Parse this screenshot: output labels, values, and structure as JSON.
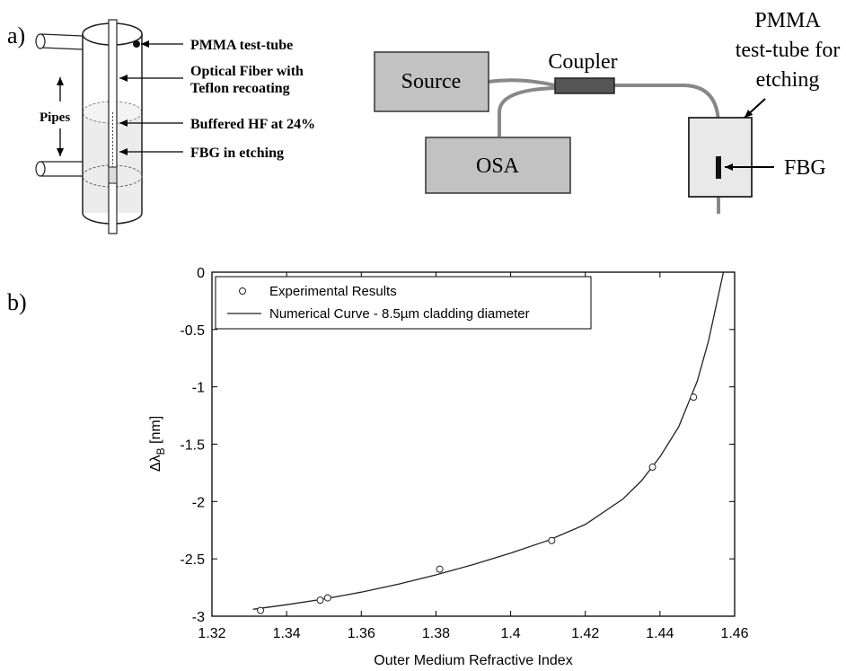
{
  "panel_a": {
    "label": "a)",
    "tube_labels": {
      "pmma": "PMMA test-tube",
      "fiber_line1": "Optical Fiber with",
      "fiber_line2": "Teflon recoating",
      "hf": "Buffered HF at 24%",
      "fbg": "FBG in etching",
      "pipes": "Pipes"
    },
    "setup": {
      "source": "Source",
      "coupler": "Coupler",
      "osa": "OSA",
      "pmma_line1": "PMMA",
      "pmma_line2": "test-tube for",
      "pmma_line3": "etching",
      "fbg": "FBG"
    }
  },
  "panel_b": {
    "label": "b)"
  },
  "chart_data": {
    "type": "scatter",
    "xlabel": "Outer Medium Refractive Index",
    "ylabel_main": "Δλ",
    "ylabel_sub": "B",
    "ylabel_unit": " [nm]",
    "xlim": [
      1.32,
      1.46
    ],
    "ylim": [
      -3,
      0
    ],
    "xticks": [
      1.32,
      1.34,
      1.36,
      1.38,
      1.4,
      1.42,
      1.44,
      1.46
    ],
    "xtick_labels": [
      "1.32",
      "1.34",
      "1.36",
      "1.38",
      "1.4",
      "1.42",
      "1.44",
      "1.46"
    ],
    "yticks": [
      0,
      -0.5,
      -1,
      -1.5,
      -2,
      -2.5,
      -3
    ],
    "ytick_labels": [
      "0",
      "-0.5",
      "-1",
      "-1.5",
      "-2",
      "-2.5",
      "-3"
    ],
    "grid": false,
    "legend_position": "top-left",
    "series": [
      {
        "name": "Experimental Results",
        "kind": "markers",
        "x": [
          1.333,
          1.349,
          1.351,
          1.381,
          1.411,
          1.438,
          1.449
        ],
        "y": [
          -2.95,
          -2.86,
          -2.84,
          -2.59,
          -2.34,
          -1.7,
          -1.09
        ]
      },
      {
        "name": "Numerical Curve - 8.5µm cladding diameter",
        "kind": "line",
        "x": [
          1.331,
          1.34,
          1.35,
          1.36,
          1.37,
          1.38,
          1.39,
          1.4,
          1.41,
          1.42,
          1.43,
          1.435,
          1.44,
          1.445,
          1.45,
          1.453,
          1.455,
          1.457
        ],
        "y": [
          -2.94,
          -2.9,
          -2.85,
          -2.79,
          -2.72,
          -2.64,
          -2.55,
          -2.45,
          -2.34,
          -2.2,
          -1.98,
          -1.82,
          -1.61,
          -1.35,
          -0.95,
          -0.6,
          -0.3,
          0.0
        ]
      }
    ]
  }
}
